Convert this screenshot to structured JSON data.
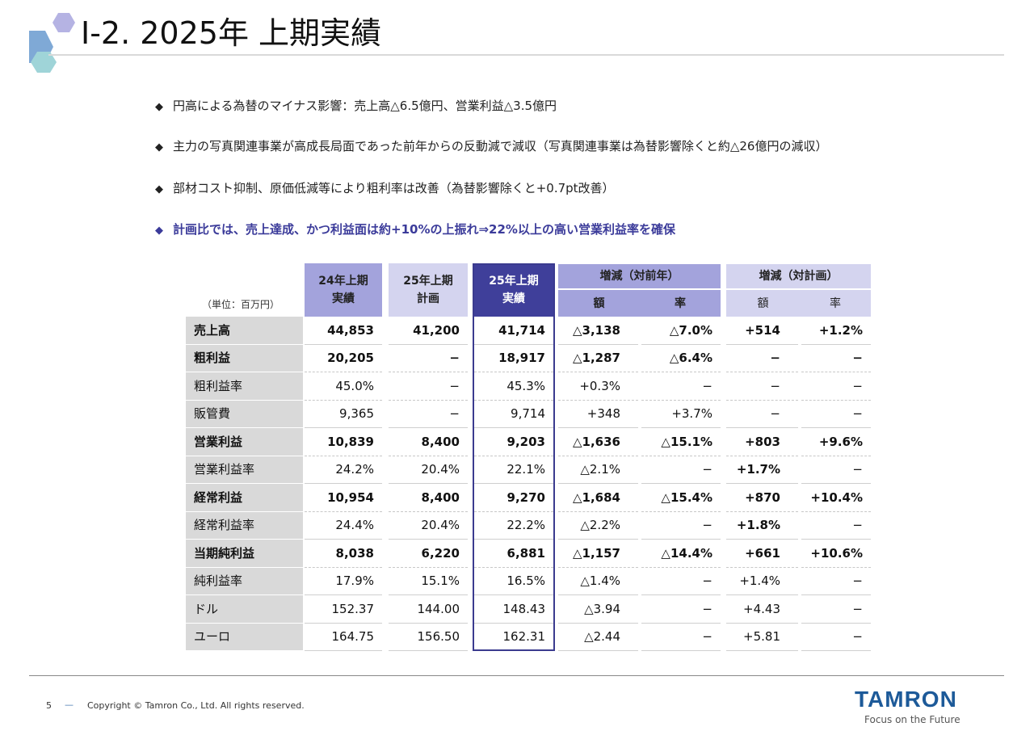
{
  "header": {
    "title": "Ⅰ-2. 2025年 上期実績"
  },
  "bullets": [
    {
      "text": "円高による為替のマイナス影響：売上高△6.5億円、営業利益△3.5億円",
      "highlight": false
    },
    {
      "text": "主力の写真関連事業が高成長局面であった前年からの反動減で減収（写真関連事業は為替影響除くと約△26億円の減収）",
      "highlight": false
    },
    {
      "text": "部材コスト抑制、原価低減等により粗利率は改善（為替影響除くと+0.7pt改善）",
      "highlight": false
    },
    {
      "text": "計画比では、売上達成、かつ利益面は約+10%の上振れ⇒22%以上の高い営業利益率を確保",
      "highlight": true
    }
  ],
  "bullet_icon": "diamond-icon",
  "table": {
    "unit": "（単位：百万円）",
    "col_headers": [
      "24年上期\n実績",
      "25年上期\n計画",
      "25年上期\n実績"
    ],
    "group_headers": [
      "増減（対前年）",
      "増減（対計画）"
    ],
    "sub_headers": [
      "額",
      "率",
      "額",
      "率"
    ],
    "rows": [
      {
        "label": "売上高",
        "bold": true,
        "cells": [
          "44,853",
          "41,200",
          "41,714",
          "△3,138",
          "△7.0%",
          "+514",
          "+1.2%"
        ]
      },
      {
        "label": "粗利益",
        "bold": true,
        "cells": [
          "20,205",
          "−",
          "18,917",
          "△1,287",
          "△6.4%",
          "−",
          "−"
        ]
      },
      {
        "label": "粗利益率",
        "bold": false,
        "cells": [
          "45.0%",
          "−",
          "45.3%",
          "+0.3%",
          "−",
          "−",
          "−"
        ]
      },
      {
        "label": "販管費",
        "bold": false,
        "cells": [
          "9,365",
          "−",
          "9,714",
          "+348",
          "+3.7%",
          "−",
          "−"
        ]
      },
      {
        "label": "営業利益",
        "bold": true,
        "cells": [
          "10,839",
          "8,400",
          "9,203",
          "△1,636",
          "△15.1%",
          "+803",
          "+9.6%"
        ]
      },
      {
        "label": "営業利益率",
        "bold": false,
        "bold_cells": [
          5
        ],
        "cells": [
          "24.2%",
          "20.4%",
          "22.1%",
          "△2.1%",
          "−",
          "+1.7%",
          "−"
        ]
      },
      {
        "label": "経常利益",
        "bold": true,
        "cells": [
          "10,954",
          "8,400",
          "9,270",
          "△1,684",
          "△15.4%",
          "+870",
          "+10.4%"
        ]
      },
      {
        "label": "経常利益率",
        "bold": false,
        "bold_cells": [
          5
        ],
        "cells": [
          "24.4%",
          "20.4%",
          "22.2%",
          "△2.2%",
          "−",
          "+1.8%",
          "−"
        ]
      },
      {
        "label": "当期純利益",
        "bold": true,
        "cells": [
          "8,038",
          "6,220",
          "6,881",
          "△1,157",
          "△14.4%",
          "+661",
          "+10.6%"
        ]
      },
      {
        "label": "純利益率",
        "bold": false,
        "cells": [
          "17.9%",
          "15.1%",
          "16.5%",
          "△1.4%",
          "−",
          "+1.4%",
          "−"
        ]
      },
      {
        "label": "ドル",
        "bold": false,
        "cells": [
          "152.37",
          "144.00",
          "148.43",
          "△3.94",
          "−",
          "+4.43",
          "−"
        ]
      },
      {
        "label": "ユーロ",
        "bold": false,
        "cells": [
          "164.75",
          "156.50",
          "162.31",
          "△2.44",
          "−",
          "+5.81",
          "−"
        ]
      }
    ]
  },
  "colors": {
    "header_light": "#d4d4ef",
    "header_mid": "#a3a3dc",
    "header_dark": "#3f3f9a",
    "label_bg": "#d9d9d9",
    "highlight_text": "#3b3b9a",
    "brand": "#1d5a99"
  },
  "footer": {
    "page": "5",
    "copyright": "Copyright © Tamron Co., Ltd. All rights reserved.",
    "logo": "TAMRON",
    "tagline": "Focus on the Future"
  }
}
